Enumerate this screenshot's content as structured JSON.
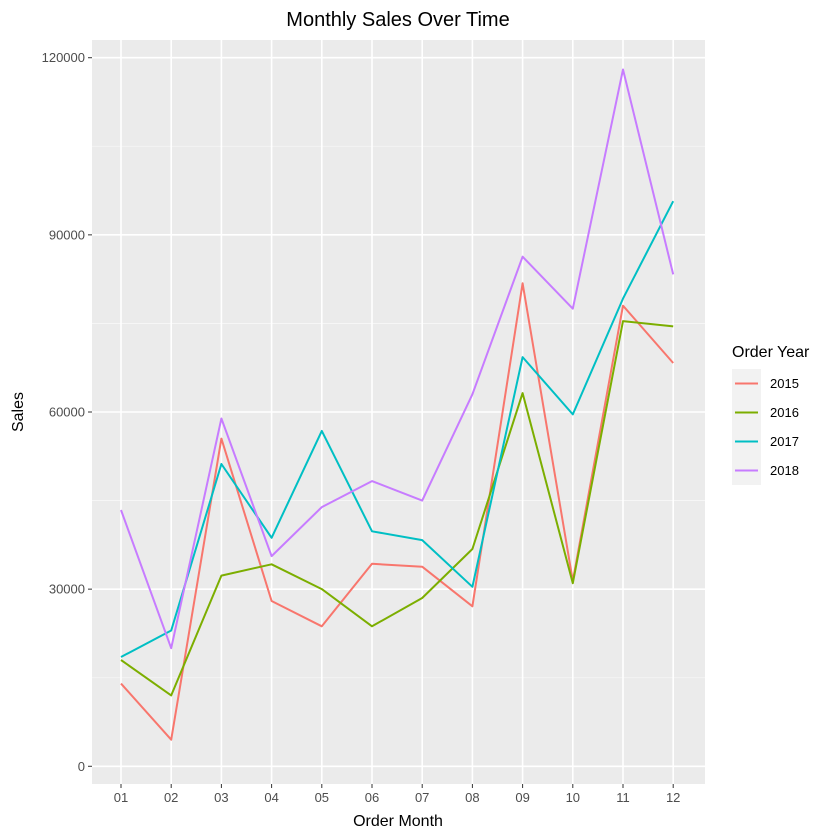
{
  "chart_data": {
    "type": "line",
    "title": "Monthly Sales Over Time",
    "xlabel": "Order Month",
    "ylabel": "Sales",
    "categories": [
      "01",
      "02",
      "03",
      "04",
      "05",
      "06",
      "07",
      "08",
      "09",
      "10",
      "11",
      "12"
    ],
    "ylim": [
      -3000,
      123000
    ],
    "yticks": [
      0,
      30000,
      60000,
      90000,
      120000
    ],
    "yticklabels": [
      "0",
      "30000",
      "60000",
      "90000",
      "120000"
    ],
    "grid": true,
    "legend": {
      "title": "Order Year",
      "placement": "right"
    },
    "series": [
      {
        "name": "2015",
        "color": "#F8766D",
        "values": [
          14000,
          4500,
          55500,
          28000,
          23700,
          34300,
          33800,
          27100,
          81800,
          31400,
          78000,
          68300
        ]
      },
      {
        "name": "2016",
        "color": "#7CAE00",
        "values": [
          18000,
          12000,
          32300,
          34200,
          30000,
          23700,
          28500,
          36800,
          63200,
          31000,
          75400,
          74500
        ]
      },
      {
        "name": "2017",
        "color": "#00BFC4",
        "values": [
          18500,
          23000,
          51200,
          38700,
          56800,
          39800,
          38300,
          30400,
          69300,
          59600,
          79200,
          95700
        ]
      },
      {
        "name": "2018",
        "color": "#C77CFF",
        "values": [
          43400,
          20000,
          58900,
          35600,
          43900,
          48300,
          45000,
          63000,
          86300,
          77500,
          118000,
          83300
        ]
      }
    ]
  }
}
